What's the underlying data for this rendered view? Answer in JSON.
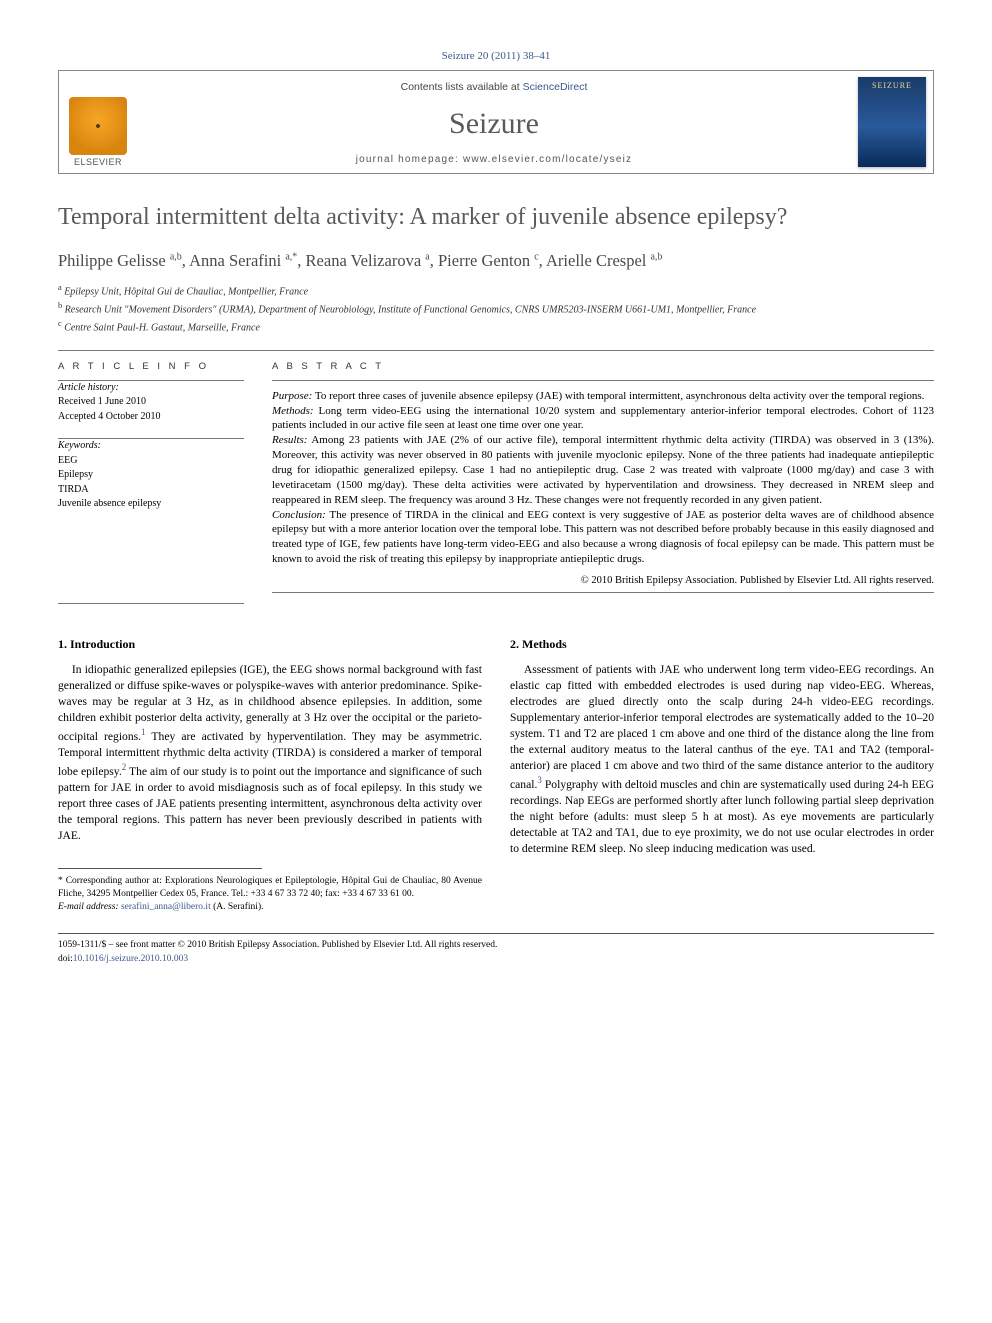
{
  "journal_ref": "Seizure 20 (2011) 38–41",
  "header": {
    "contents_prefix": "Contents lists available at ",
    "contents_link": "ScienceDirect",
    "journal_name": "Seizure",
    "homepage_label": "journal homepage: ",
    "homepage_url": "www.elsevier.com/locate/yseiz",
    "publisher_name": "ELSEVIER",
    "cover_title": "SEIZURE"
  },
  "title": "Temporal intermittent delta activity: A marker of juvenile absence epilepsy?",
  "authors_html": "Philippe Gelisse <sup>a,b</sup>, Anna Serafini <sup>a,*</sup>, Reana Velizarova <sup>a</sup>, Pierre Genton <sup>c</sup>, Arielle Crespel <sup>a,b</sup>",
  "affiliations": [
    {
      "mark": "a",
      "text": "Epilepsy Unit, Hôpital Gui de Chauliac, Montpellier, France"
    },
    {
      "mark": "b",
      "text": "Research Unit \"Movement Disorders\" (URMA), Department of Neurobiology, Institute of Functional Genomics, CNRS UMR5203-INSERM U661-UM1, Montpellier, France"
    },
    {
      "mark": "c",
      "text": "Centre Saint Paul-H. Gastaut, Marseille, France"
    }
  ],
  "article_info": {
    "heading": "A R T I C L E   I N F O",
    "history_label": "Article history:",
    "received": "Received 1 June 2010",
    "accepted": "Accepted 4 October 2010",
    "keywords_label": "Keywords:",
    "keywords": [
      "EEG",
      "Epilepsy",
      "TIRDA",
      "Juvenile absence epilepsy"
    ]
  },
  "abstract": {
    "heading": "A B S T R A C T",
    "segments": [
      {
        "label": "Purpose:",
        "text": " To report three cases of juvenile absence epilepsy (JAE) with temporal intermittent, asynchronous delta activity over the temporal regions."
      },
      {
        "label": "Methods:",
        "text": " Long term video-EEG using the international 10/20 system and supplementary anterior-inferior temporal electrodes. Cohort of 1123 patients included in our active file seen at least one time over one year."
      },
      {
        "label": "Results:",
        "text": " Among 23 patients with JAE (2% of our active file), temporal intermittent rhythmic delta activity (TIRDA) was observed in 3 (13%). Moreover, this activity was never observed in 80 patients with juvenile myoclonic epilepsy. None of the three patients had inadequate antiepileptic drug for idiopathic generalized epilepsy. Case 1 had no antiepileptic drug. Case 2 was treated with valproate (1000 mg/day) and case 3 with levetiracetam (1500 mg/day). These delta activities were activated by hyperventilation and drowsiness. They decreased in NREM sleep and reappeared in REM sleep. The frequency was around 3 Hz. These changes were not frequently recorded in any given patient."
      },
      {
        "label": "Conclusion:",
        "text": " The presence of TIRDA in the clinical and EEG context is very suggestive of JAE as posterior delta waves are of childhood absence epilepsy but with a more anterior location over the temporal lobe. This pattern was not described before probably because in this easily diagnosed and treated type of IGE, few patients have long-term video-EEG and also because a wrong diagnosis of focal epilepsy can be made. This pattern must be known to avoid the risk of treating this epilepsy by inappropriate antiepileptic drugs."
      }
    ],
    "copyright": "© 2010 British Epilepsy Association. Published by Elsevier Ltd. All rights reserved."
  },
  "sections": {
    "intro_heading": "1. Introduction",
    "intro_p1a": "In idiopathic generalized epilepsies (IGE), the EEG shows normal background with fast generalized or diffuse spike-waves or polyspike-waves with anterior predominance. Spike-waves may be regular at 3 Hz, as in childhood absence epilepsies. In addition, some children exhibit posterior delta activity, generally at 3 Hz over the occipital or the parieto-occipital regions.",
    "intro_p1b": " They are activated by hyperventilation. They may be asymmetric. Temporal intermittent rhythmic delta activity (TIRDA) is considered a marker of temporal lobe epilepsy.",
    "intro_p1c": " The aim of our study is to point out the importance and significance of such pattern for JAE in order to avoid misdiagnosis such as of focal epilepsy. In this study we report three cases of JAE patients presenting intermittent, asynchronous delta activity over the ",
    "intro_p1_tail": "temporal regions. This pattern has never been previously described in patients with JAE.",
    "methods_heading": "2. Methods",
    "methods_p1a": "Assessment of patients with JAE who underwent long term video-EEG recordings. An elastic cap fitted with embedded electrodes is used during nap video-EEG. Whereas, electrodes are glued directly onto the scalp during 24-h video-EEG recordings. Supplementary anterior-inferior temporal electrodes are systematically added to the 10–20 system. T1 and T2 are placed 1 cm above and one third of the distance along the line from the external auditory meatus to the lateral canthus of the eye. TA1 and TA2 (temporal-anterior) are placed 1 cm above and two third of the same distance anterior to the auditory canal.",
    "methods_p1b": " Polygraphy with deltoid muscles and chin are systematically used during 24-h EEG recordings. Nap EEGs are performed shortly after lunch following partial sleep deprivation the night before (adults: must sleep 5 h at most). As eye movements are particularly detectable at TA2 and TA1, due to eye proximity, we do not use ocular electrodes in order to determine REM sleep. No sleep inducing medication was used."
  },
  "footnotes": {
    "corr_label": "* Corresponding author at: ",
    "corr_text": "Explorations Neurologiques et Epileptologie, Hôpital Gui de Chauliac, 80 Avenue Fliche, 34295 Montpellier Cedex 05, France. Tel.: +33 4 67 33 72 40; fax: +33 4 67 33 61 00.",
    "email_label": "E-mail address: ",
    "email": "serafini_anna@libero.it",
    "email_who": " (A. Serafini)."
  },
  "footer": {
    "line": "1059-1311/$ – see front matter © 2010 British Epilepsy Association. Published by Elsevier Ltd. All rights reserved.",
    "doi_label": "doi:",
    "doi": "10.1016/j.seizure.2010.10.003"
  },
  "refs": {
    "r1": "1",
    "r2": "2",
    "r3": "3"
  },
  "colors": {
    "link": "#3a5a8a",
    "title_gray": "#5a5a5a",
    "rule": "#777777"
  }
}
